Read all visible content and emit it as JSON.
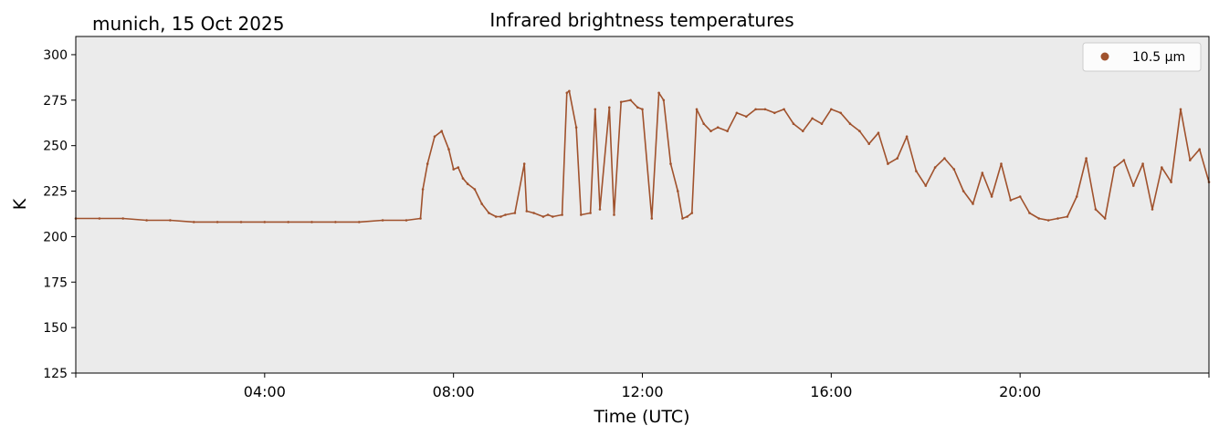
{
  "chart_data": {
    "type": "scatter",
    "title": "Infrared brightness temperatures",
    "subtitle": "munich, 15 Oct 2025",
    "xlabel": "Time (UTC)",
    "ylabel": "K",
    "xlim": [
      "00:00",
      "24:00"
    ],
    "ylim": [
      125,
      310
    ],
    "xticks": [
      "04:00",
      "08:00",
      "12:00",
      "16:00",
      "20:00"
    ],
    "yticks": [
      125,
      150,
      175,
      200,
      225,
      250,
      275,
      300
    ],
    "grid": false,
    "legend_position": "top-right",
    "background_color": "#ebebeb",
    "series": [
      {
        "name": "10.5 µm",
        "color": "#a0522d",
        "x_hours": [
          0.0,
          0.5,
          1.0,
          1.5,
          2.0,
          2.5,
          3.0,
          3.5,
          4.0,
          4.5,
          5.0,
          5.5,
          6.0,
          6.5,
          7.0,
          7.3,
          7.35,
          7.45,
          7.6,
          7.75,
          7.9,
          8.0,
          8.1,
          8.2,
          8.3,
          8.45,
          8.6,
          8.75,
          8.9,
          9.0,
          9.1,
          9.3,
          9.5,
          9.55,
          9.7,
          9.9,
          10.0,
          10.1,
          10.3,
          10.4,
          10.45,
          10.6,
          10.7,
          10.9,
          11.0,
          11.1,
          11.3,
          11.4,
          11.55,
          11.75,
          11.9,
          12.0,
          12.2,
          12.35,
          12.45,
          12.6,
          12.75,
          12.85,
          12.95,
          13.05,
          13.15,
          13.3,
          13.45,
          13.6,
          13.8,
          14.0,
          14.2,
          14.4,
          14.6,
          14.8,
          15.0,
          15.2,
          15.4,
          15.6,
          15.8,
          16.0,
          16.2,
          16.4,
          16.6,
          16.8,
          17.0,
          17.2,
          17.4,
          17.6,
          17.8,
          18.0,
          18.2,
          18.4,
          18.6,
          18.8,
          19.0,
          19.2,
          19.4,
          19.6,
          19.8,
          20.0,
          20.2,
          20.4,
          20.6,
          20.8,
          21.0,
          21.2,
          21.4,
          21.6,
          21.8,
          22.0,
          22.2,
          22.4,
          22.6,
          22.8,
          23.0,
          23.2,
          23.4,
          23.6,
          23.8,
          24.0
        ],
        "values": [
          210,
          210,
          210,
          209,
          209,
          208,
          208,
          208,
          208,
          208,
          208,
          208,
          208,
          209,
          209,
          210,
          226,
          240,
          255,
          258,
          248,
          237,
          238,
          232,
          229,
          226,
          218,
          213,
          211,
          211,
          212,
          213,
          240,
          214,
          213,
          211,
          212,
          211,
          212,
          279,
          280,
          260,
          212,
          213,
          270,
          215,
          271,
          212,
          274,
          275,
          271,
          270,
          210,
          279,
          275,
          240,
          225,
          210,
          211,
          213,
          270,
          262,
          258,
          260,
          258,
          268,
          266,
          270,
          270,
          268,
          270,
          262,
          258,
          265,
          262,
          270,
          268,
          262,
          258,
          251,
          257,
          240,
          243,
          255,
          236,
          228,
          238,
          243,
          237,
          225,
          218,
          235,
          222,
          240,
          220,
          222,
          213,
          210,
          209,
          210,
          211,
          222,
          243,
          215,
          210,
          238,
          242,
          228,
          240,
          215,
          238,
          230,
          270,
          242,
          248,
          230
        ]
      }
    ]
  }
}
